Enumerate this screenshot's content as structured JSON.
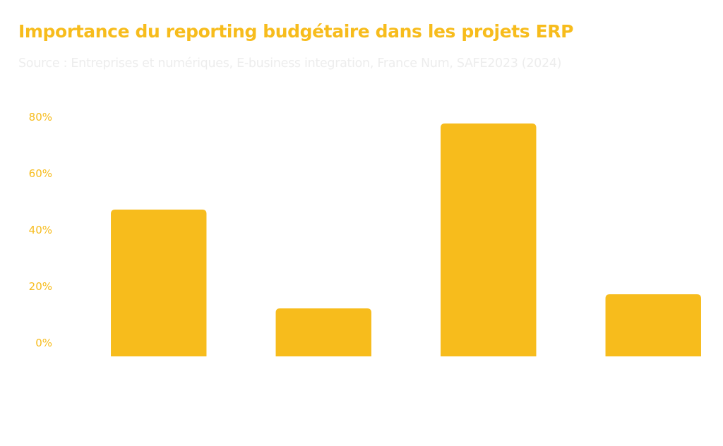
{
  "colors": {
    "accent": "#F7BC1C",
    "subtitle": "#EDEDED",
    "background": "#FFFFFF"
  },
  "chart_data": {
    "type": "bar",
    "title": "Importance du reporting budgétaire dans les projets ERP",
    "subtitle": "Source : Entreprises et numériques, E-business integration, France Num, SAFE2023 (2024)",
    "xlabel": "",
    "ylabel": "",
    "categories": [
      "",
      "",
      "",
      ""
    ],
    "values": [
      47,
      12,
      77.5,
      17
    ],
    "ylim": [
      0,
      80
    ],
    "yticks": [
      0,
      20,
      40,
      60,
      80
    ],
    "ytick_labels": [
      "0%",
      "20%",
      "40%",
      "60%",
      "80%"
    ],
    "grid": false,
    "legend": "none"
  }
}
